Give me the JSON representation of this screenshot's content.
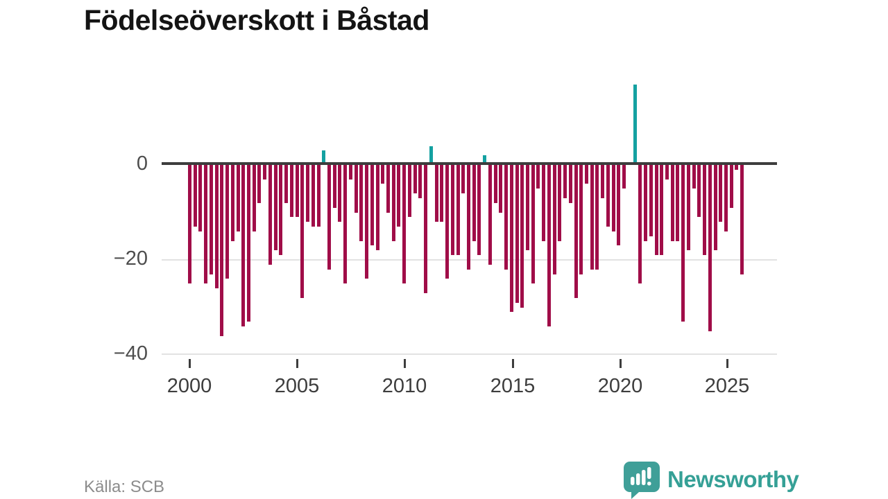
{
  "title": "Födelseöverskott i Båstad",
  "source": "Källa: SCB",
  "branding": {
    "logo_text": "Newsworthy",
    "logo_icon": "bar-chart-speech-bubble-icon"
  },
  "colors": {
    "negative_bar": "#a00d48",
    "positive_bar": "#14a1a1",
    "zero_line": "#3d3d3d",
    "gridline": "#e2e2e2",
    "title_text": "#141414",
    "axis_text": "#3d3d3d",
    "y_axis_text": "#4d4d4d",
    "source_text": "#8c8c8c",
    "brand_teal": "#35a096"
  },
  "chart_data": {
    "type": "bar",
    "title": "Födelseöverskott i Båstad",
    "xlabel": "",
    "ylabel": "",
    "x_tick_labels": [
      "2000",
      "2005",
      "2010",
      "2015",
      "2020",
      "2025"
    ],
    "y_tick_labels": [
      "0",
      "−20",
      "−40"
    ],
    "y_tick_values": [
      0,
      -20,
      -40
    ],
    "ylim": [
      -42,
      18
    ],
    "grid": "horizontal-only",
    "legend": "none",
    "frequency": "quarterly",
    "x_start": "2000 Q1",
    "x_end": "2025 Q4",
    "series": [
      {
        "name": "Födelseöverskott",
        "values": [
          -25,
          -13,
          -14,
          -25,
          -23,
          -26,
          -36,
          -24,
          -16,
          -14,
          -34,
          -33,
          -14,
          -8,
          -3,
          -21,
          -18,
          -19,
          -8,
          -11,
          -11,
          -28,
          -12,
          -13,
          -13,
          3,
          -22,
          -9,
          -12,
          -25,
          -3,
          -10,
          -16,
          -24,
          -17,
          -18,
          -4,
          -10,
          -16,
          -13,
          -25,
          -11,
          -6,
          -7,
          -27,
          4,
          -12,
          -12,
          -24,
          -19,
          -19,
          -6,
          -22,
          -16,
          -19,
          2,
          -21,
          -8,
          -10,
          -22,
          -31,
          -29,
          -30,
          -18,
          -25,
          -5,
          -16,
          -34,
          -23,
          -16,
          -7,
          -8,
          -28,
          -23,
          -4,
          -22,
          -22,
          -7,
          -13,
          -14,
          -17,
          -5,
          0,
          17,
          -25,
          -16,
          -15,
          -19,
          -19,
          -3,
          -16,
          -16,
          -33,
          -18,
          -5,
          -11,
          -19,
          -35,
          -18,
          -12,
          -14,
          -9,
          -1,
          -23
        ]
      }
    ]
  }
}
